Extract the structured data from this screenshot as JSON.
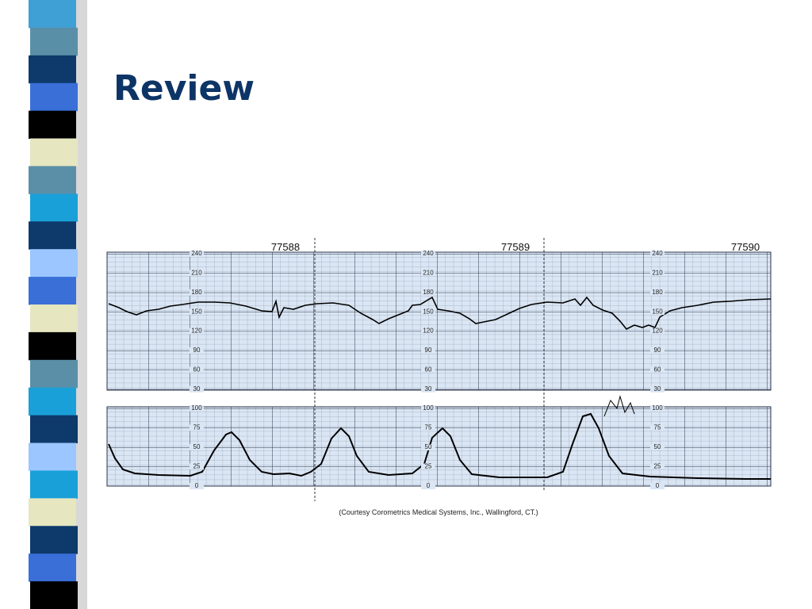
{
  "title": "Review",
  "strip_ids": [
    "77588",
    "77589",
    "77590"
  ],
  "fhr_scale": [
    240,
    210,
    180,
    150,
    120,
    90,
    60,
    30
  ],
  "uc_scale": [
    100,
    75,
    50,
    25,
    0
  ],
  "caption": "(Courtesy Corometrics Medical Systems, Inc., Wallingford, CT.)"
}
